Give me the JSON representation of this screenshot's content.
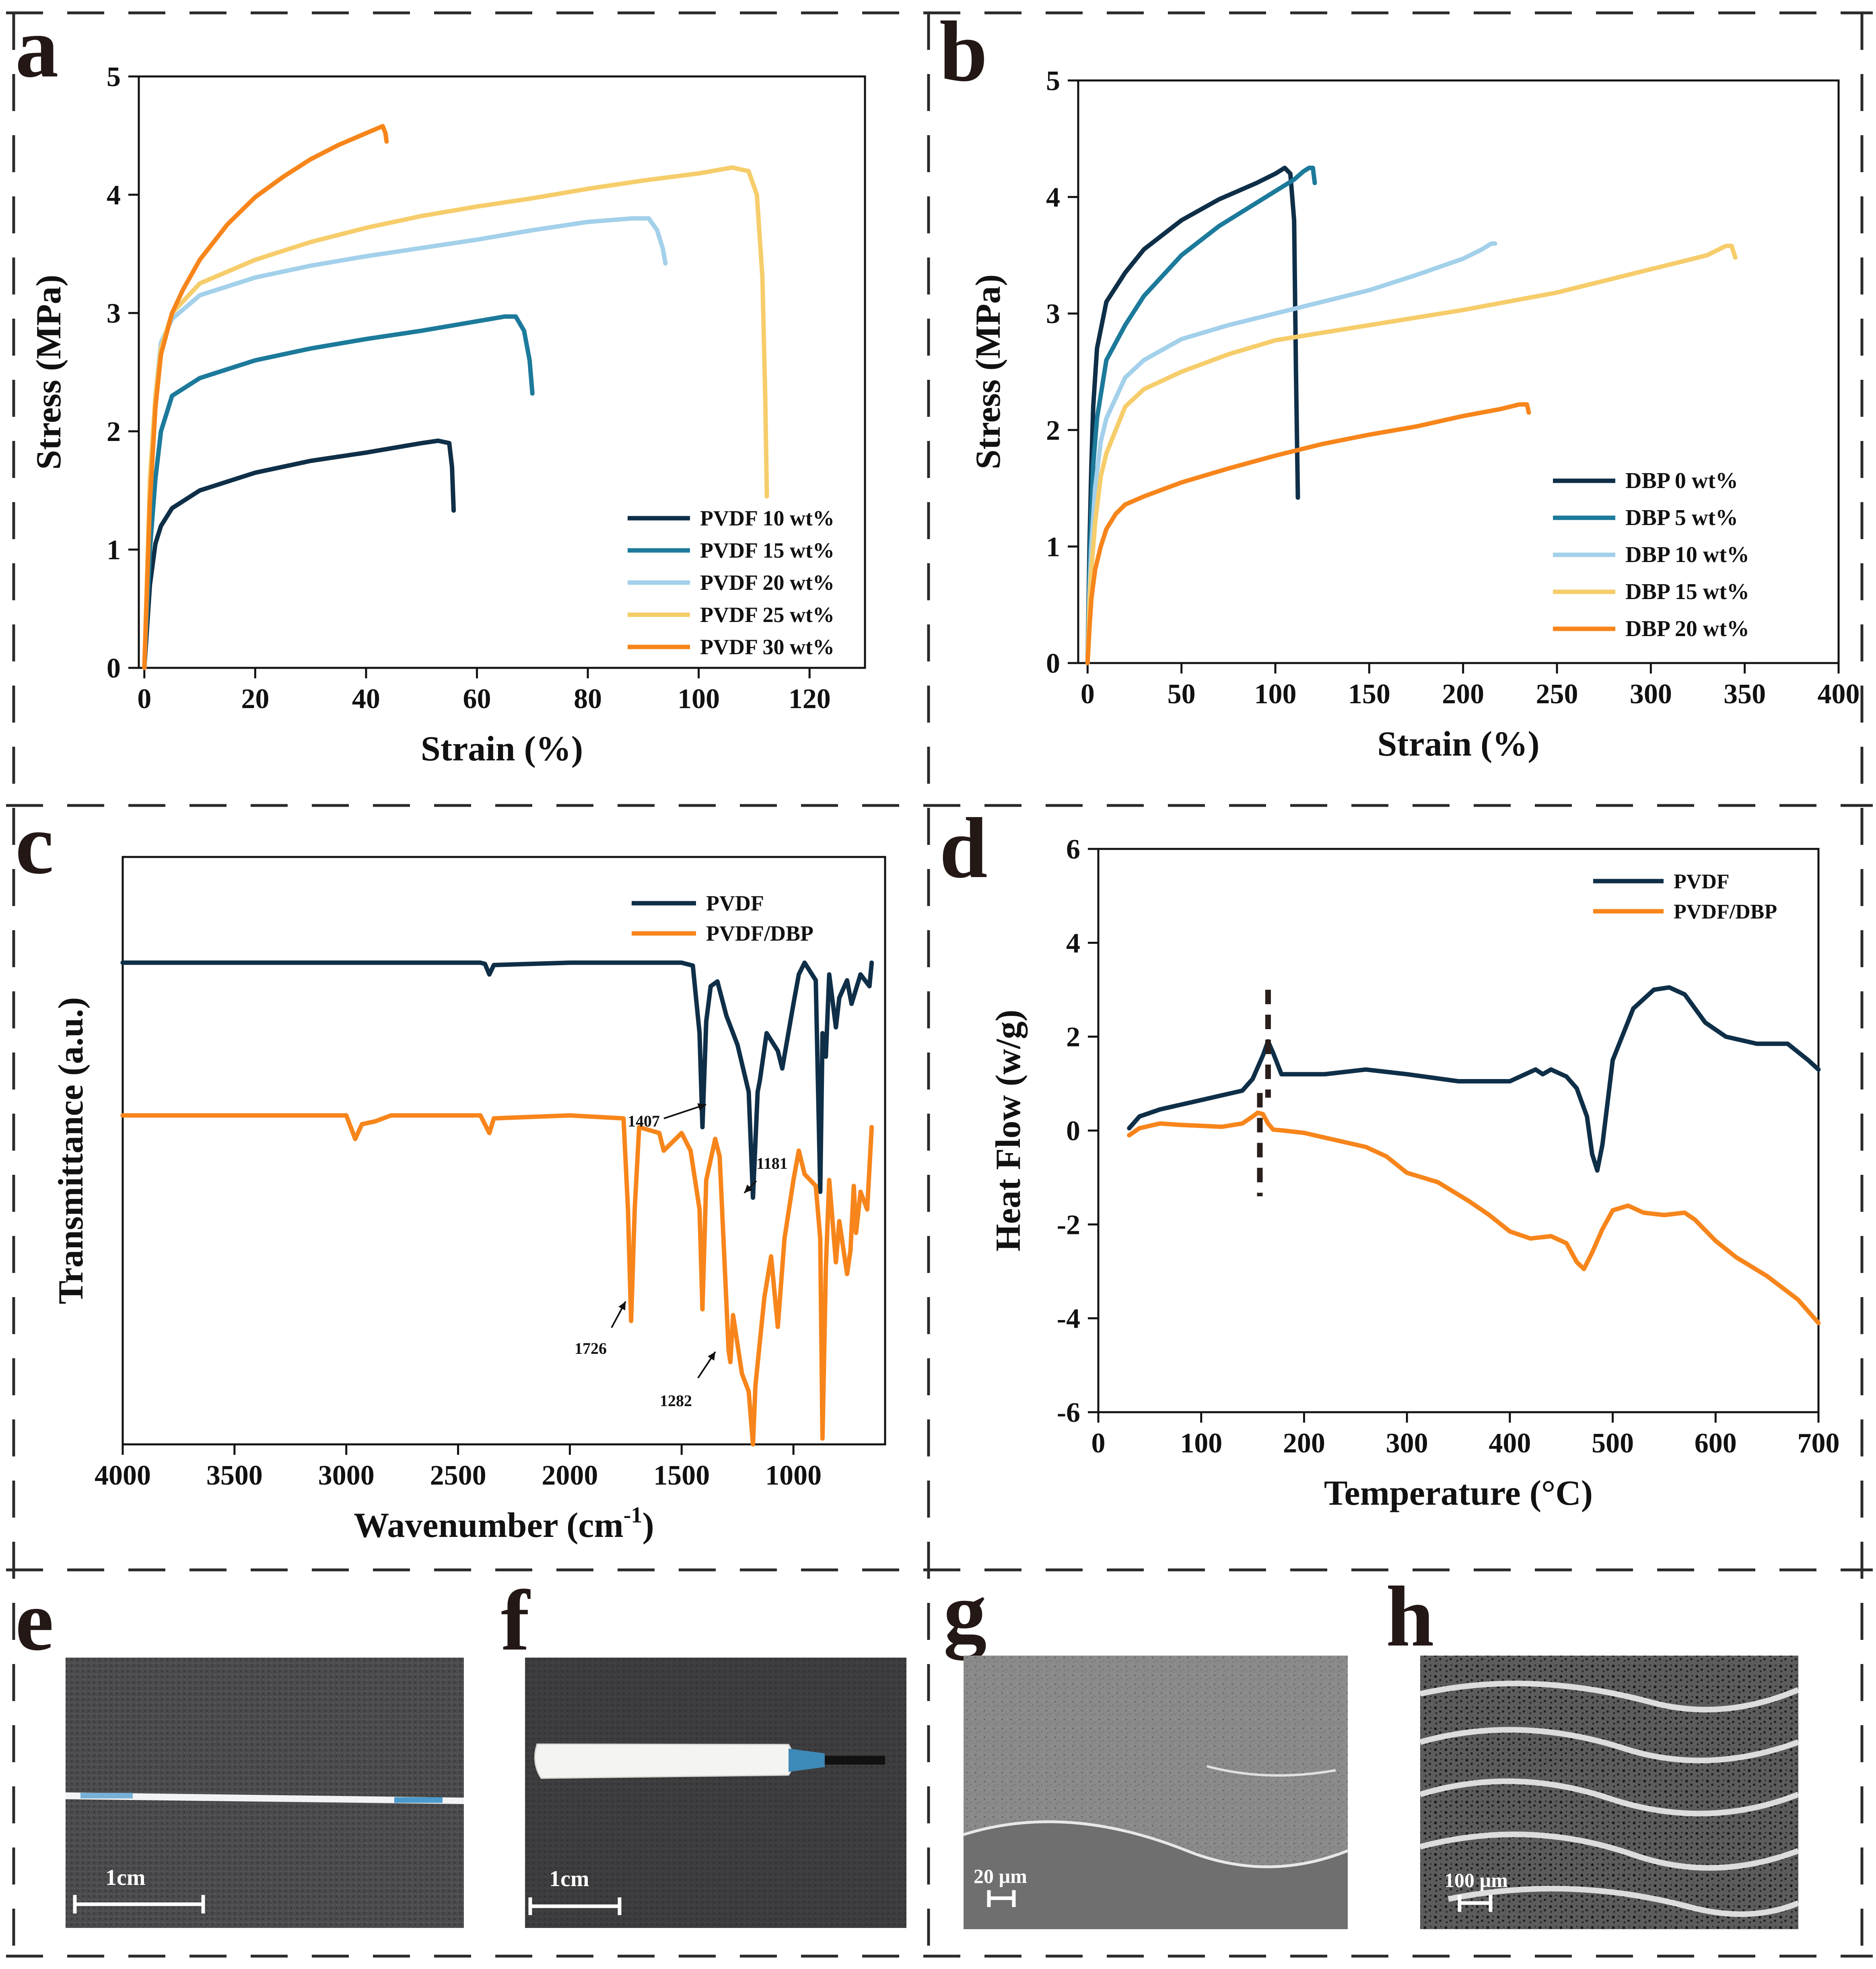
{
  "colors": {
    "c1": "#0f2f48",
    "c2": "#1c7a9b",
    "c3": "#a3d0ea",
    "c4": "#f6cd6b",
    "c5": "#f7851b",
    "orange": "#f7851b",
    "dark": "#0f2f48"
  },
  "panel_labels": [
    "a",
    "b",
    "c",
    "d",
    "e",
    "f",
    "g",
    "h"
  ],
  "photos": {
    "e": {
      "scalebar": "1cm"
    },
    "f": {
      "scalebar": "1cm"
    },
    "g": {
      "scalebar": "20 µm"
    },
    "h": {
      "scalebar": "100 µm"
    }
  },
  "chart_data": [
    {
      "panel": "a",
      "type": "line",
      "xlabel": "Strain (%)",
      "ylabel": "Stress (MPa)",
      "xlim": [
        -1,
        130
      ],
      "ylim": [
        0,
        5
      ],
      "xticks": [
        0,
        20,
        40,
        60,
        80,
        100,
        120
      ],
      "yticks": [
        0,
        1,
        2,
        3,
        4,
        5
      ],
      "legend_position": "bottom-right",
      "series": [
        {
          "name": "PVDF 10 wt%",
          "x": [
            0,
            1,
            2,
            3,
            5,
            10,
            20,
            30,
            40,
            50,
            53,
            55,
            55.5,
            55.8
          ],
          "y": [
            0,
            0.7,
            1.05,
            1.2,
            1.35,
            1.5,
            1.65,
            1.75,
            1.82,
            1.9,
            1.92,
            1.9,
            1.7,
            1.33
          ]
        },
        {
          "name": "PVDF 15 wt%",
          "x": [
            0,
            1,
            2,
            3,
            5,
            10,
            20,
            30,
            40,
            50,
            60,
            65,
            67,
            68.5,
            69.5,
            70
          ],
          "y": [
            0,
            1.0,
            1.6,
            2.0,
            2.3,
            2.45,
            2.6,
            2.7,
            2.78,
            2.85,
            2.93,
            2.97,
            2.97,
            2.85,
            2.6,
            2.32
          ]
        },
        {
          "name": "PVDF 20 wt%",
          "x": [
            0,
            1,
            2,
            3,
            5,
            10,
            20,
            30,
            40,
            50,
            60,
            70,
            80,
            88,
            91,
            92.5,
            93.5,
            94
          ],
          "y": [
            0,
            1.5,
            2.3,
            2.75,
            2.95,
            3.15,
            3.3,
            3.4,
            3.48,
            3.55,
            3.62,
            3.7,
            3.77,
            3.8,
            3.8,
            3.7,
            3.55,
            3.42
          ]
        },
        {
          "name": "PVDF 25 wt%",
          "x": [
            0,
            1,
            2,
            3,
            5,
            10,
            20,
            30,
            40,
            50,
            60,
            70,
            80,
            90,
            100,
            106,
            109,
            110.5,
            111.5,
            112,
            112.3
          ],
          "y": [
            0,
            1.6,
            2.3,
            2.7,
            3.0,
            3.25,
            3.45,
            3.6,
            3.72,
            3.82,
            3.9,
            3.97,
            4.05,
            4.12,
            4.18,
            4.23,
            4.2,
            4.0,
            3.3,
            2.3,
            1.45
          ]
        },
        {
          "name": "PVDF 30 wt%",
          "x": [
            0,
            1,
            2,
            3,
            5,
            7,
            10,
            15,
            20,
            25,
            30,
            35,
            40,
            42,
            43,
            43.5,
            43.7
          ],
          "y": [
            0,
            1.4,
            2.2,
            2.65,
            3.0,
            3.2,
            3.45,
            3.75,
            3.98,
            4.15,
            4.3,
            4.42,
            4.52,
            4.56,
            4.58,
            4.52,
            4.45
          ]
        }
      ]
    },
    {
      "panel": "b",
      "type": "line",
      "xlabel": "Strain (%)",
      "ylabel": "Stress (MPa)",
      "xlim": [
        -5,
        400
      ],
      "ylim": [
        0,
        5
      ],
      "xticks": [
        0,
        50,
        100,
        150,
        200,
        250,
        300,
        350,
        400
      ],
      "yticks": [
        0,
        1,
        2,
        3,
        4,
        5
      ],
      "legend_position": "bottom-right",
      "series": [
        {
          "name": "DBP  0 wt%",
          "x": [
            0,
            1,
            2,
            3,
            5,
            10,
            20,
            30,
            50,
            70,
            90,
            100,
            105,
            108,
            110,
            111,
            112
          ],
          "y": [
            0,
            1.0,
            1.7,
            2.2,
            2.7,
            3.1,
            3.35,
            3.55,
            3.8,
            3.98,
            4.12,
            4.2,
            4.25,
            4.2,
            3.8,
            2.5,
            1.42
          ]
        },
        {
          "name": "DBP  5 wt%",
          "x": [
            0,
            1,
            2,
            3,
            5,
            10,
            20,
            30,
            50,
            70,
            90,
            100,
            110,
            115,
            118,
            120,
            121
          ],
          "y": [
            0,
            0.8,
            1.3,
            1.7,
            2.1,
            2.6,
            2.9,
            3.15,
            3.5,
            3.75,
            3.95,
            4.05,
            4.15,
            4.22,
            4.25,
            4.25,
            4.12
          ]
        },
        {
          "name": "DBP 10 wt%",
          "x": [
            0,
            1,
            2,
            4,
            7,
            10,
            20,
            30,
            50,
            75,
            100,
            125,
            150,
            175,
            200,
            210,
            215,
            217
          ],
          "y": [
            0,
            0.6,
            1.0,
            1.5,
            1.9,
            2.1,
            2.45,
            2.6,
            2.78,
            2.9,
            3.0,
            3.1,
            3.2,
            3.33,
            3.47,
            3.55,
            3.6,
            3.6
          ]
        },
        {
          "name": "DBP 15 wt%",
          "x": [
            0,
            1,
            2,
            4,
            7,
            10,
            20,
            30,
            50,
            75,
            100,
            150,
            200,
            250,
            300,
            330,
            340,
            343,
            345
          ],
          "y": [
            0,
            0.5,
            0.8,
            1.2,
            1.6,
            1.8,
            2.2,
            2.35,
            2.5,
            2.65,
            2.77,
            2.9,
            3.03,
            3.18,
            3.38,
            3.5,
            3.58,
            3.58,
            3.48
          ]
        },
        {
          "name": "DBP 20 wt%",
          "x": [
            0,
            1,
            2,
            4,
            7,
            10,
            15,
            20,
            30,
            50,
            75,
            100,
            125,
            150,
            175,
            200,
            220,
            230,
            234,
            235
          ],
          "y": [
            0,
            0.3,
            0.55,
            0.8,
            1.0,
            1.15,
            1.28,
            1.36,
            1.43,
            1.55,
            1.67,
            1.78,
            1.88,
            1.96,
            2.03,
            2.12,
            2.18,
            2.22,
            2.22,
            2.15
          ]
        }
      ]
    },
    {
      "panel": "c",
      "type": "line",
      "xlabel": "Wavenumber (cm",
      "xlabel_sup": "-1",
      "xlabel_end": ")",
      "ylabel": "Transmittance (a.u.)",
      "xlim": [
        4000,
        590
      ],
      "ylim": [
        0,
        100
      ],
      "xticks": [
        4000,
        3500,
        3000,
        2500,
        2000,
        1500,
        1000
      ],
      "legend_position": "top-right",
      "annotations": [
        "1407",
        "1181",
        "1726",
        "1282"
      ],
      "series": [
        {
          "name": "PVDF",
          "x": [
            4000,
            2400,
            2380,
            2360,
            2340,
            2000,
            1500,
            1450,
            1420,
            1407,
            1390,
            1370,
            1340,
            1300,
            1250,
            1200,
            1181,
            1160,
            1150,
            1120,
            1070,
            1050,
            1000,
            976,
            950,
            900,
            880,
            870,
            855,
            840,
            810,
            795,
            760,
            740,
            700,
            660,
            650
          ],
          "y": [
            82,
            82,
            81.8,
            80,
            81.6,
            82,
            82,
            81.5,
            70,
            54,
            72,
            78,
            78.8,
            73,
            68,
            60,
            42,
            60,
            62,
            70,
            67,
            64,
            75,
            80,
            82,
            79,
            43,
            70,
            66,
            80,
            71,
            76,
            79,
            75,
            80,
            78,
            82
          ]
        },
        {
          "name": "PVDF/DBP",
          "x": [
            4000,
            3000,
            2960,
            2930,
            2870,
            2800,
            2400,
            2360,
            2340,
            2000,
            1760,
            1740,
            1726,
            1710,
            1690,
            1600,
            1580,
            1500,
            1460,
            1420,
            1407,
            1390,
            1350,
            1330,
            1290,
            1282,
            1270,
            1230,
            1200,
            1181,
            1170,
            1130,
            1100,
            1070,
            1040,
            1000,
            976,
            950,
            900,
            880,
            870,
            855,
            840,
            810,
            795,
            760,
            745,
            730,
            720,
            700,
            670,
            650
          ],
          "y": [
            56,
            56,
            52,
            54.5,
            55,
            56,
            56,
            53,
            55.5,
            56,
            55.5,
            40,
            21,
            40,
            54,
            53,
            50,
            53,
            50,
            40,
            23,
            45,
            52,
            49,
            16,
            14,
            22,
            12,
            9,
            0,
            10,
            25,
            32,
            20,
            35,
            45,
            50,
            46,
            44,
            35,
            1,
            30,
            45,
            31,
            38,
            29,
            33,
            44,
            36,
            43,
            40,
            54
          ]
        }
      ]
    },
    {
      "panel": "d",
      "type": "line",
      "xlabel": "Temperature (°C)",
      "ylabel": "Heat Flow (w/g)",
      "xlim": [
        0,
        700
      ],
      "ylim": [
        -6,
        6
      ],
      "xticks": [
        0,
        100,
        200,
        300,
        400,
        500,
        600,
        700
      ],
      "yticks": [
        -6,
        -4,
        -2,
        0,
        2,
        4,
        6
      ],
      "legend_position": "top-right",
      "series": [
        {
          "name": "PVDF",
          "x": [
            30,
            40,
            60,
            80,
            100,
            120,
            140,
            150,
            160,
            165,
            170,
            178,
            190,
            220,
            260,
            300,
            350,
            400,
            425,
            432,
            440,
            455,
            465,
            475,
            480,
            485,
            490,
            500,
            520,
            540,
            555,
            570,
            590,
            610,
            640,
            670,
            690,
            700
          ],
          "y": [
            0.05,
            0.3,
            0.45,
            0.55,
            0.65,
            0.75,
            0.85,
            1.1,
            1.6,
            1.9,
            1.65,
            1.2,
            1.2,
            1.2,
            1.3,
            1.2,
            1.05,
            1.05,
            1.3,
            1.2,
            1.3,
            1.15,
            0.9,
            0.3,
            -0.5,
            -0.85,
            -0.3,
            1.5,
            2.6,
            3.0,
            3.05,
            2.9,
            2.3,
            2.0,
            1.85,
            1.85,
            1.5,
            1.3
          ]
        },
        {
          "name": "PVDF/DBP",
          "x": [
            30,
            40,
            60,
            80,
            100,
            120,
            140,
            150,
            155,
            160,
            165,
            170,
            180,
            200,
            230,
            260,
            280,
            300,
            330,
            360,
            380,
            400,
            420,
            440,
            455,
            465,
            472,
            480,
            490,
            500,
            515,
            530,
            550,
            570,
            580,
            600,
            620,
            650,
            680,
            700
          ],
          "y": [
            -0.1,
            0.05,
            0.15,
            0.12,
            0.1,
            0.08,
            0.15,
            0.3,
            0.38,
            0.35,
            0.15,
            0.02,
            0.0,
            -0.05,
            -0.2,
            -0.35,
            -0.55,
            -0.9,
            -1.1,
            -1.5,
            -1.8,
            -2.15,
            -2.3,
            -2.25,
            -2.4,
            -2.8,
            -2.95,
            -2.6,
            -2.1,
            -1.7,
            -1.6,
            -1.75,
            -1.8,
            -1.75,
            -1.9,
            -2.35,
            -2.7,
            -3.1,
            -3.6,
            -4.1
          ]
        }
      ]
    }
  ]
}
